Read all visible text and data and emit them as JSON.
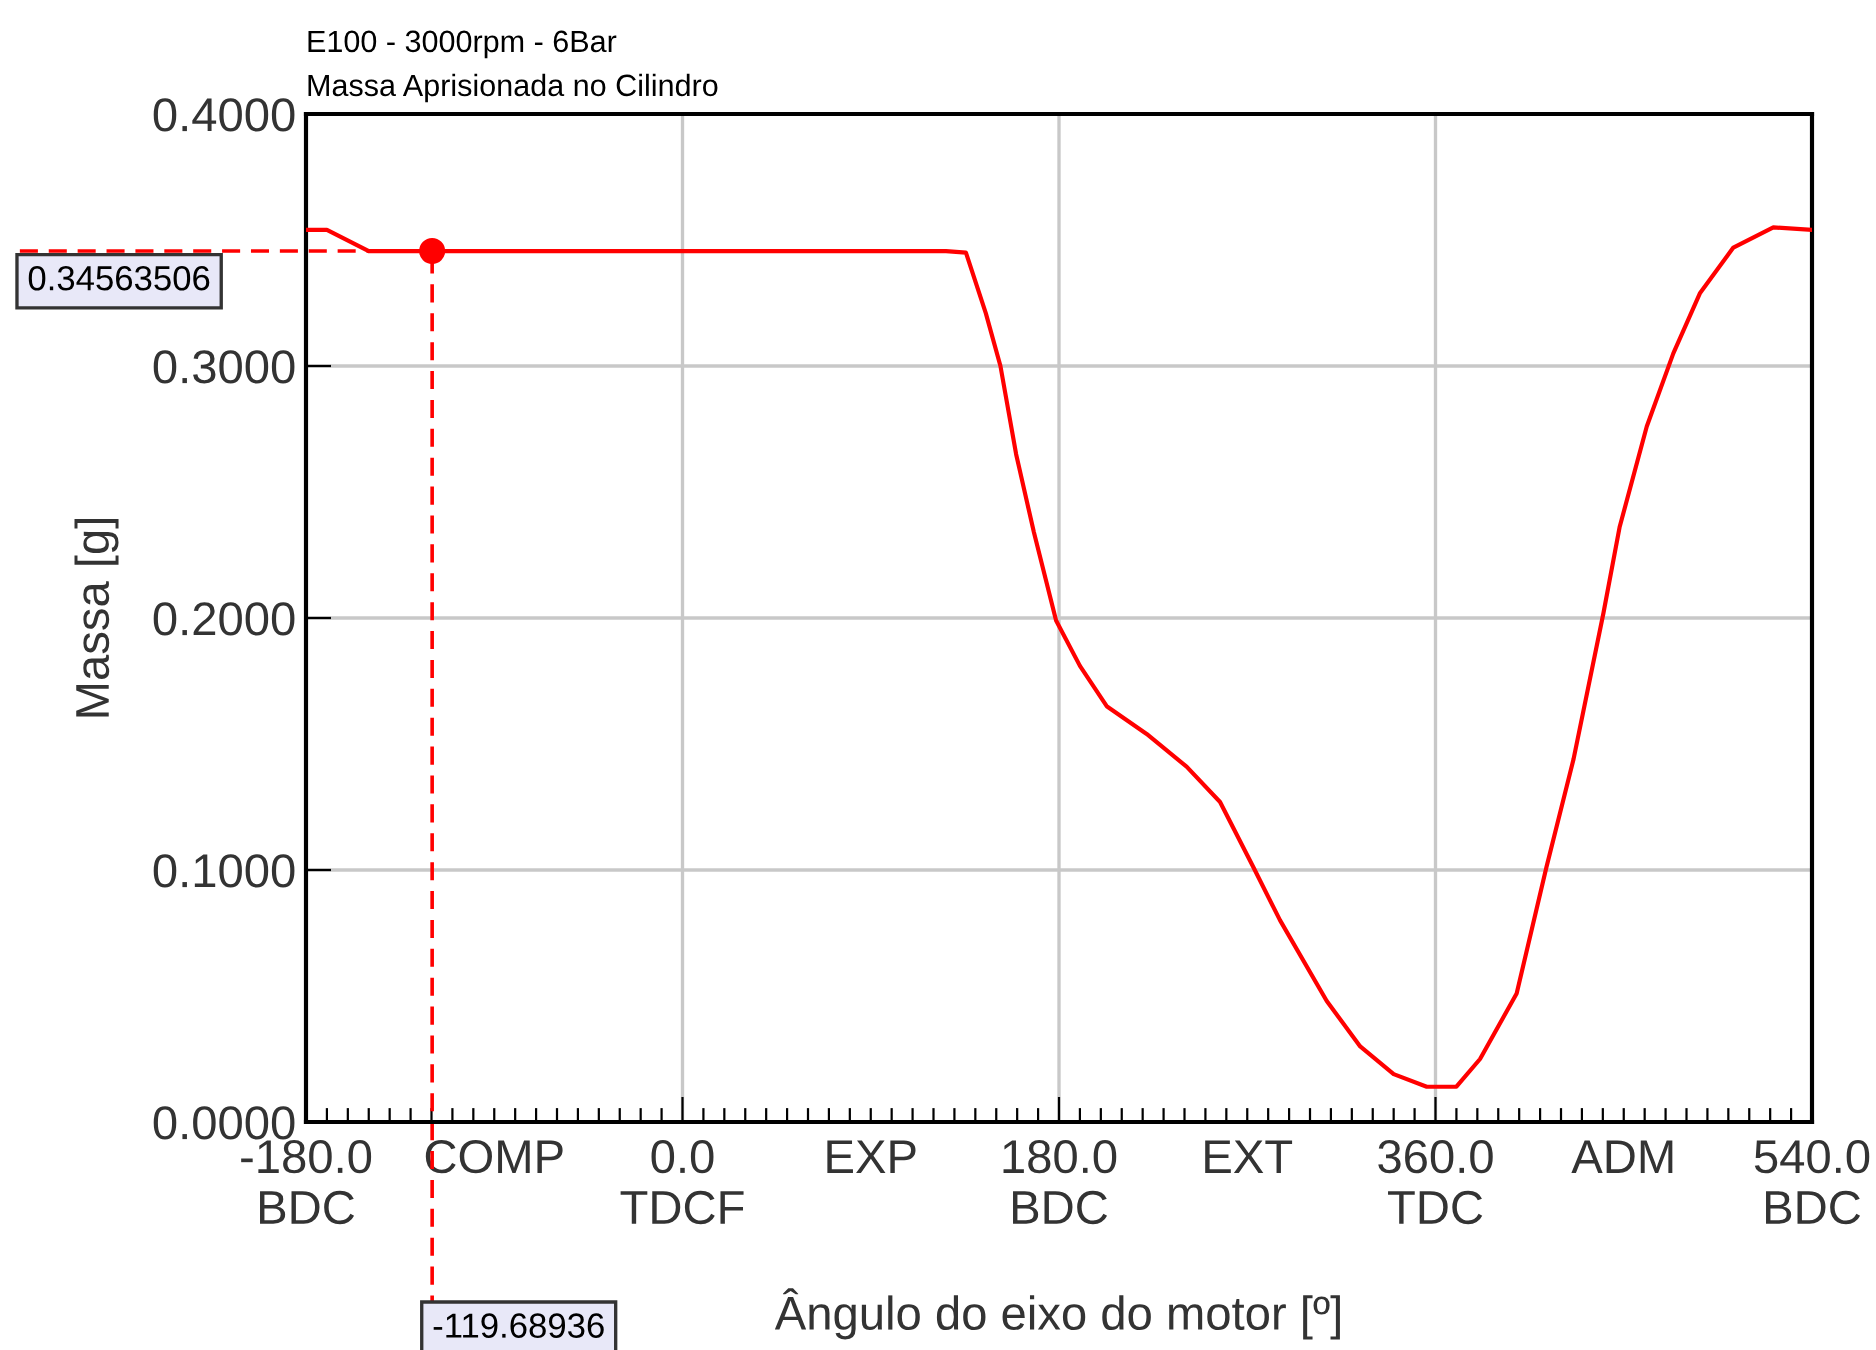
{
  "chart_data": {
    "type": "line",
    "title": "E100 - 3000rpm - 6Bar",
    "subtitle": "Massa Aprisionada no Cilindro",
    "xlabel": "Ângulo do eixo do motor [º]",
    "ylabel": "Massa [g]",
    "series": [
      {
        "color": "#ff0000",
        "x": [
          -180,
          -170,
          -150,
          -120,
          0,
          126,
          135.5,
          145,
          152,
          159.5,
          168,
          178.6,
          190,
          202.8,
          221.9,
          241,
          257,
          273,
          285.7,
          308,
          324,
          340,
          355.8,
          370,
          381.3,
          398.8,
          413,
          426,
          440.3,
          448,
          461,
          473.7,
          486.5,
          502.4,
          521.5,
          540
        ],
        "values": [
          0.354,
          0.354,
          0.3456,
          0.3456,
          0.3456,
          0.3456,
          0.345,
          0.321,
          0.3,
          0.265,
          0.234,
          0.199,
          0.181,
          0.165,
          0.154,
          0.141,
          0.127,
          0.101,
          0.08,
          0.048,
          0.03,
          0.019,
          0.014,
          0.014,
          0.025,
          0.051,
          0.101,
          0.144,
          0.202,
          0.236,
          0.276,
          0.305,
          0.329,
          0.347,
          0.355,
          0.354
        ]
      },
      {
        "type": "scatter",
        "marker": "circle",
        "color": "#ff0000",
        "x": [
          -119.68936
        ],
        "values": [
          0.34563506
        ]
      }
    ],
    "xlim": [
      -180,
      540
    ],
    "ylim": [
      0,
      0.4
    ],
    "xticks": [
      {
        "value": -180,
        "label": "-180.0\nBDC"
      },
      {
        "value": -170,
        "label": null
      },
      {
        "value": -160,
        "label": null
      },
      {
        "value": -150,
        "label": null
      },
      {
        "value": -140,
        "label": null
      },
      {
        "value": -130,
        "label": null
      },
      {
        "value": -120,
        "label": null
      },
      {
        "value": -110,
        "label": null
      },
      {
        "value": -100,
        "label": null
      },
      {
        "value": -90,
        "label": "COMP"
      },
      {
        "value": -80,
        "label": null
      },
      {
        "value": -70,
        "label": null
      },
      {
        "value": -60,
        "label": null
      },
      {
        "value": -50,
        "label": null
      },
      {
        "value": -40,
        "label": null
      },
      {
        "value": -30,
        "label": null
      },
      {
        "value": -20,
        "label": null
      },
      {
        "value": -10,
        "label": null
      },
      {
        "value": 0,
        "label": "0.0\nTDCF"
      },
      {
        "value": 10,
        "label": null
      },
      {
        "value": 20,
        "label": null
      },
      {
        "value": 30,
        "label": null
      },
      {
        "value": 40,
        "label": null
      },
      {
        "value": 50,
        "label": null
      },
      {
        "value": 60,
        "label": null
      },
      {
        "value": 70,
        "label": null
      },
      {
        "value": 80,
        "label": null
      },
      {
        "value": 90,
        "label": "EXP"
      },
      {
        "value": 100,
        "label": null
      },
      {
        "value": 110,
        "label": null
      },
      {
        "value": 120,
        "label": null
      },
      {
        "value": 130,
        "label": null
      },
      {
        "value": 140,
        "label": null
      },
      {
        "value": 150,
        "label": null
      },
      {
        "value": 160,
        "label": null
      },
      {
        "value": 170,
        "label": null
      },
      {
        "value": 180,
        "label": "180.0\nBDC"
      },
      {
        "value": 190,
        "label": null
      },
      {
        "value": 200,
        "label": null
      },
      {
        "value": 210,
        "label": null
      },
      {
        "value": 220,
        "label": null
      },
      {
        "value": 230,
        "label": null
      },
      {
        "value": 240,
        "label": null
      },
      {
        "value": 250,
        "label": null
      },
      {
        "value": 260,
        "label": null
      },
      {
        "value": 270,
        "label": "EXT"
      },
      {
        "value": 280,
        "label": null
      },
      {
        "value": 290,
        "label": null
      },
      {
        "value": 300,
        "label": null
      },
      {
        "value": 310,
        "label": null
      },
      {
        "value": 320,
        "label": null
      },
      {
        "value": 330,
        "label": null
      },
      {
        "value": 340,
        "label": null
      },
      {
        "value": 350,
        "label": null
      },
      {
        "value": 360,
        "label": "360.0\nTDC"
      },
      {
        "value": 370,
        "label": null
      },
      {
        "value": 380,
        "label": null
      },
      {
        "value": 390,
        "label": null
      },
      {
        "value": 400,
        "label": null
      },
      {
        "value": 410,
        "label": null
      },
      {
        "value": 420,
        "label": null
      },
      {
        "value": 430,
        "label": null
      },
      {
        "value": 440,
        "label": null
      },
      {
        "value": 450,
        "label": "ADM"
      },
      {
        "value": 460,
        "label": null
      },
      {
        "value": 470,
        "label": null
      },
      {
        "value": 480,
        "label": null
      },
      {
        "value": 490,
        "label": null
      },
      {
        "value": 500,
        "label": null
      },
      {
        "value": 510,
        "label": null
      },
      {
        "value": 520,
        "label": null
      },
      {
        "value": 530,
        "label": null
      },
      {
        "value": 540,
        "label": "540.0\nBDC"
      }
    ],
    "yticks": [
      {
        "value": 0,
        "label": "0.0000"
      },
      {
        "value": 0.1,
        "label": "0.1000"
      },
      {
        "value": 0.2,
        "label": "0.2000"
      },
      {
        "value": 0.3,
        "label": "0.3000"
      },
      {
        "value": 0.4,
        "label": "0.4000"
      }
    ],
    "grid": true,
    "marker": "none",
    "line_style": "solid",
    "ref_lines": [
      {
        "axis": "x",
        "value": -119.68936,
        "label": "-119.68936",
        "color": "#ff0000",
        "line_style": "dashed"
      },
      {
        "axis": "y",
        "value": 0.34563506,
        "label": "0.34563506",
        "color": "#ff0000",
        "line_style": "dashed"
      }
    ]
  }
}
